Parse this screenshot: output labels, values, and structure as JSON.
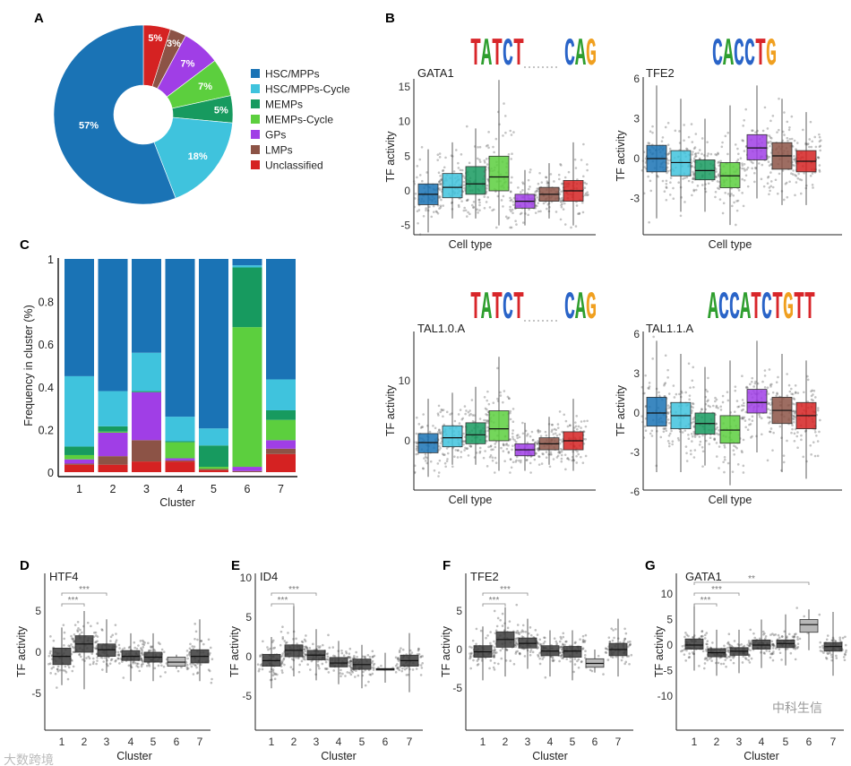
{
  "watermarks": {
    "top_right": "中科生信",
    "bottom_left": "大数跨境"
  },
  "chart_data": [
    {
      "panel": "A",
      "type": "pie",
      "donut": true,
      "labels": [
        "HSC/MPPs",
        "HSC/MPPs-Cycle",
        "MEMPs",
        "MEMPs-Cycle",
        "GPs",
        "LMPs",
        "Unclassified"
      ],
      "values": [
        57,
        18,
        5,
        7,
        7,
        3,
        5
      ],
      "value_labels": [
        "57%",
        "18%",
        "5%",
        "7%",
        "7%",
        "3%",
        "5%"
      ],
      "colors": [
        "#1a73b5",
        "#3fc3dd",
        "#179a5f",
        "#5ccf3e",
        "#a03ee6",
        "#8c5346",
        "#d52222"
      ],
      "legend_position": "right"
    },
    {
      "panel": "B",
      "type": "box",
      "title": "GATA1",
      "motif": [
        "TATCT",
        "CAG"
      ],
      "xlabel": "Cell type",
      "ylabel": "TF activity",
      "ylim": [
        -6,
        17
      ],
      "yticks": [
        "-5",
        "0",
        "5",
        "10",
        "15"
      ],
      "categories": [
        "HSC/MPPs",
        "HSC/MPPs-Cycle",
        "MEMPs",
        "MEMPs-Cycle",
        "GPs",
        "LMPs",
        "Unclassified"
      ],
      "boxes": [
        [
          -6,
          -2,
          -0.5,
          1,
          6
        ],
        [
          -4,
          -1,
          0.5,
          2.5,
          7
        ],
        [
          -4,
          -0.5,
          1,
          3.5,
          9
        ],
        [
          -5,
          0,
          2,
          5,
          16
        ],
        [
          -5,
          -2.5,
          -1.5,
          -0.5,
          3
        ],
        [
          -4,
          -1.5,
          -0.5,
          0.5,
          4
        ],
        [
          -5,
          -1.5,
          0,
          1.5,
          7
        ]
      ]
    },
    {
      "panel": "B",
      "type": "box",
      "title": "TFE2",
      "motif": [
        "CACCTG"
      ],
      "xlabel": "Cell type",
      "ylabel": "TF activity",
      "ylim": [
        -6,
        6
      ],
      "yticks": [
        "-3",
        "0",
        "3",
        "6"
      ],
      "categories": [
        "HSC/MPPs",
        "HSC/MPPs-Cycle",
        "MEMPs",
        "MEMPs-Cycle",
        "GPs",
        "LMPs",
        "Unclassified"
      ],
      "boxes": [
        [
          -4.5,
          -1,
          0,
          1,
          5.5
        ],
        [
          -4,
          -1.3,
          -0.3,
          0.6,
          4.5
        ],
        [
          -4,
          -1.6,
          -0.9,
          -0.1,
          3
        ],
        [
          -5,
          -2.2,
          -1.3,
          -0.3,
          4
        ],
        [
          -3,
          -0.1,
          0.8,
          1.8,
          5.5
        ],
        [
          -3.5,
          -0.8,
          0.2,
          1.2,
          4.5
        ],
        [
          -3.5,
          -1,
          -0.2,
          0.6,
          3.5
        ]
      ]
    },
    {
      "panel": "B",
      "type": "box",
      "title": "TAL1.0.A",
      "motif": [
        "TATCT",
        "CAG"
      ],
      "xlabel": "Cell type",
      "ylabel": "TF activity",
      "ylim": [
        -6,
        18
      ],
      "yticks": [
        "0",
        "10"
      ],
      "categories": [
        "HSC/MPPs",
        "HSC/MPPs-Cycle",
        "MEMPs",
        "MEMPs-Cycle",
        "GPs",
        "LMPs",
        "Unclassified"
      ],
      "boxes": [
        [
          -6,
          -2,
          -0.3,
          1.2,
          7
        ],
        [
          -4,
          -1,
          0.5,
          2.5,
          8
        ],
        [
          -4,
          -0.5,
          1,
          3,
          9
        ],
        [
          -5,
          0,
          2,
          5,
          14
        ],
        [
          -5,
          -2.5,
          -1.5,
          -0.5,
          3
        ],
        [
          -4,
          -1.5,
          -0.5,
          0.5,
          4
        ],
        [
          -5,
          -1.5,
          0,
          1.5,
          7
        ]
      ]
    },
    {
      "panel": "B",
      "type": "box",
      "title": "TAL1.1.A",
      "motif": [
        "ACCATCTGTT"
      ],
      "xlabel": "Cell type",
      "ylabel": "TF activity",
      "ylim": [
        -6,
        6
      ],
      "yticks": [
        "-6",
        "-3",
        "0",
        "3",
        "6"
      ],
      "categories": [
        "HSC/MPPs",
        "HSC/MPPs-Cycle",
        "MEMPs",
        "MEMPs-Cycle",
        "GPs",
        "LMPs",
        "Unclassified"
      ],
      "boxes": [
        [
          -4.5,
          -1,
          0,
          1.2,
          5.5
        ],
        [
          -4.5,
          -1.2,
          -0.2,
          0.8,
          4.5
        ],
        [
          -4,
          -1.6,
          -0.8,
          0,
          3.5
        ],
        [
          -5.5,
          -2.3,
          -1.3,
          -0.2,
          4
        ],
        [
          -3,
          0,
          0.8,
          1.8,
          5.5
        ],
        [
          -4.5,
          -0.8,
          0.2,
          1.2,
          4.5
        ],
        [
          -5,
          -1.2,
          -0.2,
          0.8,
          4
        ]
      ]
    },
    {
      "panel": "C",
      "type": "bar",
      "stacked": true,
      "xlabel": "Cluster",
      "ylabel": "Frequency in cluster (%)",
      "ylim": [
        0,
        1
      ],
      "yticks": [
        "0",
        "0.2",
        "0.4",
        "0.6",
        "0.8",
        "1"
      ],
      "categories": [
        "1",
        "2",
        "3",
        "4",
        "5",
        "6",
        "7"
      ],
      "series": [
        {
          "name": "Unclassified",
          "color": "#d52222",
          "values": [
            0.035,
            0.035,
            0.05,
            0.05,
            0.01,
            0.0,
            0.085
          ]
        },
        {
          "name": "LMPs",
          "color": "#8c5346",
          "values": [
            0.005,
            0.04,
            0.1,
            0.005,
            0.005,
            0.005,
            0.025
          ]
        },
        {
          "name": "GPs",
          "color": "#a03ee6",
          "values": [
            0.02,
            0.11,
            0.225,
            0.01,
            0.0,
            0.02,
            0.04
          ]
        },
        {
          "name": "MEMPs-Cycle",
          "color": "#5ccf3e",
          "values": [
            0.02,
            0.005,
            0.0,
            0.075,
            0.01,
            0.655,
            0.095
          ]
        },
        {
          "name": "MEMPs",
          "color": "#179a5f",
          "values": [
            0.04,
            0.025,
            0.005,
            0.005,
            0.1,
            0.28,
            0.045
          ]
        },
        {
          "name": "HSC/MPPs-Cycle",
          "color": "#3fc3dd",
          "values": [
            0.33,
            0.165,
            0.18,
            0.115,
            0.08,
            0.01,
            0.145
          ]
        },
        {
          "name": "HSC/MPPs",
          "color": "#1a73b5",
          "values": [
            0.55,
            0.62,
            0.44,
            0.74,
            0.795,
            0.03,
            0.565
          ]
        }
      ]
    },
    {
      "panel": "D",
      "type": "box",
      "title": "HTF4",
      "xlabel": "Cluster",
      "ylabel": "TF activity",
      "ylim": [
        -10,
        10
      ],
      "yticks": [
        "-5",
        "0",
        "5"
      ],
      "categories": [
        "1",
        "2",
        "3",
        "4",
        "5",
        "6",
        "7"
      ],
      "boxes": [
        [
          -4,
          -1.5,
          -0.5,
          0.5,
          3
        ],
        [
          -4.5,
          0,
          1,
          2,
          5
        ],
        [
          -2.5,
          -0.5,
          0.3,
          1,
          4
        ],
        [
          -3.5,
          -1,
          -0.5,
          0.2,
          2.3
        ],
        [
          -3.5,
          -1.2,
          -0.6,
          0,
          2.3
        ],
        [
          -2,
          -1.7,
          -1.2,
          -0.6,
          -0.3
        ],
        [
          -3.5,
          -1.3,
          -0.5,
          0.3,
          4
        ]
      ],
      "significance": [
        {
          "from": "1",
          "to": "2",
          "label": "***"
        },
        {
          "from": "1",
          "to": "3",
          "label": "***"
        }
      ]
    },
    {
      "panel": "E",
      "type": "box",
      "title": "ID4",
      "xlabel": "Cluster",
      "ylabel": "TF activity",
      "ylim": [
        -10,
        10
      ],
      "yticks": [
        "-5",
        "0",
        "5",
        "10"
      ],
      "categories": [
        "1",
        "2",
        "3",
        "4",
        "5",
        "6",
        "7"
      ],
      "boxes": [
        [
          -4,
          -1.2,
          -0.5,
          0.3,
          2.5
        ],
        [
          -2.5,
          0,
          0.8,
          1.5,
          6.5
        ],
        [
          -3,
          -0.4,
          0.2,
          0.8,
          3.5
        ],
        [
          -3.5,
          -1.3,
          -0.8,
          -0.1,
          2
        ],
        [
          -4,
          -1.6,
          -1,
          -0.3,
          1.5
        ],
        [
          -3.3,
          -1.7,
          -1.6,
          -1.5,
          0.5
        ],
        [
          -4.5,
          -1.2,
          -0.5,
          0.2,
          3
        ]
      ],
      "significance": [
        {
          "from": "1",
          "to": "2",
          "label": "***"
        },
        {
          "from": "1",
          "to": "3",
          "label": "***"
        }
      ]
    },
    {
      "panel": "F",
      "type": "box",
      "title": "TFE2",
      "xlabel": "Cluster",
      "ylabel": "TF activity",
      "ylim": [
        -10,
        10
      ],
      "yticks": [
        "-5",
        "0",
        "5"
      ],
      "categories": [
        "1",
        "2",
        "3",
        "4",
        "5",
        "6",
        "7"
      ],
      "boxes": [
        [
          -4,
          -1,
          -0.3,
          0.5,
          3
        ],
        [
          -3.5,
          0.3,
          1.3,
          2.3,
          5.5
        ],
        [
          -2.5,
          0.2,
          0.8,
          1.5,
          4
        ],
        [
          -3.5,
          -0.8,
          -0.2,
          0.5,
          2.5
        ],
        [
          -4,
          -1,
          -0.2,
          0.4,
          2.5
        ],
        [
          -3,
          -2.3,
          -1.8,
          -1.2,
          0
        ],
        [
          -3.5,
          -0.8,
          0,
          0.8,
          4
        ]
      ],
      "significance": [
        {
          "from": "1",
          "to": "2",
          "label": "***"
        },
        {
          "from": "1",
          "to": "3",
          "label": "***"
        }
      ]
    },
    {
      "panel": "G",
      "type": "box",
      "title": "GATA1",
      "xlabel": "Cluster",
      "ylabel": "TF activity",
      "ylim": [
        -11,
        13
      ],
      "yticks": [
        "-10",
        "-5",
        "0",
        "5",
        "10"
      ],
      "categories": [
        "1",
        "2",
        "3",
        "4",
        "5",
        "6",
        "7"
      ],
      "boxes": [
        [
          -5,
          -0.8,
          0,
          1.2,
          8
        ],
        [
          -6,
          -2.3,
          -1.5,
          -0.7,
          3
        ],
        [
          -5.5,
          -2,
          -1.2,
          -0.5,
          3
        ],
        [
          -4.5,
          -0.8,
          0,
          1,
          5
        ],
        [
          -4,
          -0.5,
          0.3,
          1,
          6
        ],
        [
          -1,
          2.5,
          4,
          5,
          7
        ],
        [
          -6,
          -1.2,
          -0.3,
          0.5,
          6.5
        ]
      ],
      "significance": [
        {
          "from": "1",
          "to": "2",
          "label": "***"
        },
        {
          "from": "1",
          "to": "3",
          "label": "***"
        },
        {
          "from": "1",
          "to": "6",
          "label": "**"
        }
      ]
    }
  ]
}
